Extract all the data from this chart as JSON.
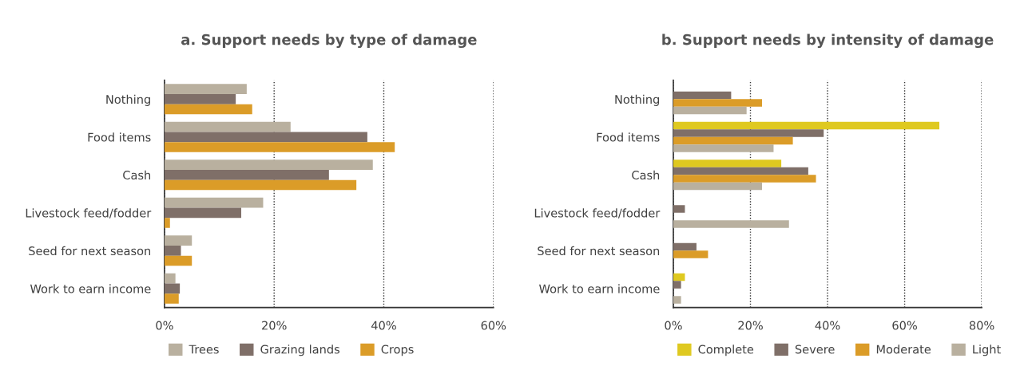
{
  "chart_data": [
    {
      "type": "bar",
      "orientation": "horizontal",
      "title": "a. Support needs by type of damage",
      "categories": [
        "Nothing",
        "Food items",
        "Cash",
        "Livestock feed/fodder",
        "Seed for next season",
        "Work to earn income"
      ],
      "series": [
        {
          "name": "Trees",
          "color": "#b9b09f",
          "values": [
            15,
            23,
            38,
            18,
            5,
            2
          ]
        },
        {
          "name": "Grazing lands",
          "color": "#7f6f68",
          "values": [
            13,
            37,
            30,
            14,
            3,
            2.8
          ]
        },
        {
          "name": "Crops",
          "color": "#db9c28",
          "values": [
            16,
            42,
            35,
            1,
            5,
            2.6
          ]
        }
      ],
      "xlim": [
        0,
        60
      ],
      "xticks": [
        {
          "value": 0,
          "label": "0%"
        },
        {
          "value": 20,
          "label": "20%"
        },
        {
          "value": 40,
          "label": "40%"
        },
        {
          "value": 60,
          "label": "60%"
        }
      ],
      "grid": "x",
      "legend": "bottom"
    },
    {
      "type": "bar",
      "orientation": "horizontal",
      "title": "b. Support needs by intensity of damage",
      "categories": [
        "Nothing",
        "Food items",
        "Cash",
        "Livestock feed/fodder",
        "Seed for next season",
        "Work to earn income"
      ],
      "series": [
        {
          "name": "Complete",
          "color": "#dfc920",
          "values": [
            null,
            69,
            28,
            null,
            null,
            3
          ]
        },
        {
          "name": "Severe",
          "color": "#7f6f68",
          "values": [
            15,
            39,
            35,
            3,
            6,
            2
          ]
        },
        {
          "name": "Moderate",
          "color": "#db9c28",
          "values": [
            23,
            31,
            37,
            null,
            9,
            null
          ]
        },
        {
          "name": "Light",
          "color": "#b9b09f",
          "values": [
            19,
            26,
            23,
            30,
            null,
            2
          ]
        }
      ],
      "xlim": [
        0,
        80
      ],
      "xticks": [
        {
          "value": 0,
          "label": "0%"
        },
        {
          "value": 20,
          "label": "20%"
        },
        {
          "value": 40,
          "label": "40%"
        },
        {
          "value": 60,
          "label": "60%"
        },
        {
          "value": 80,
          "label": "80%"
        }
      ],
      "grid": "x",
      "legend": "bottom"
    }
  ]
}
